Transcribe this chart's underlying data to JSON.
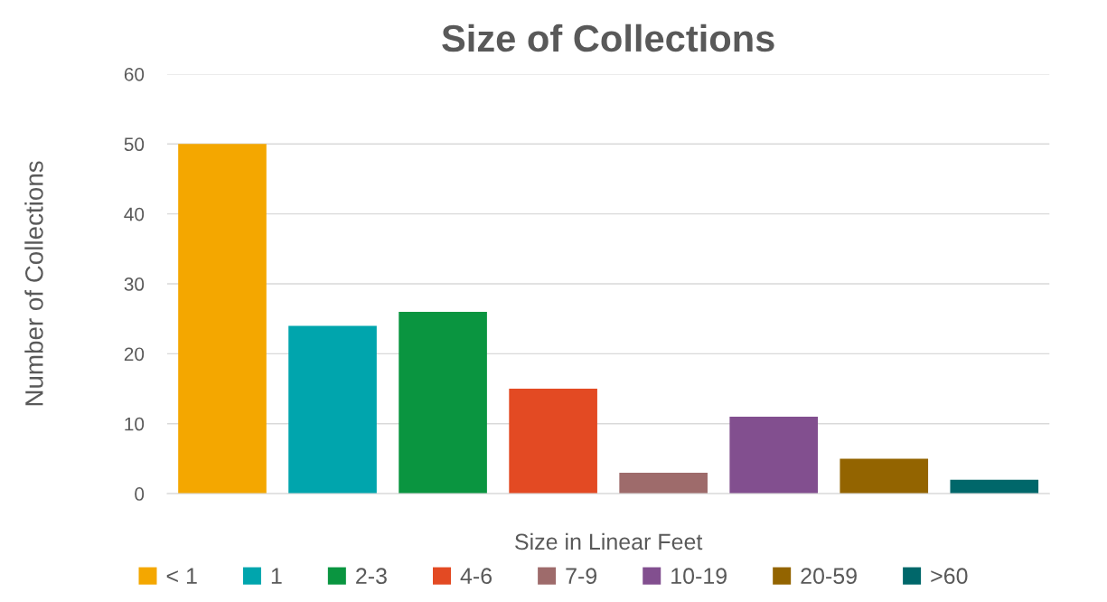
{
  "chart_data": {
    "type": "bar",
    "title": "Size of Collections",
    "xlabel": "Size in Linear Feet",
    "ylabel": "Number of Collections",
    "categories": [
      null,
      null,
      null,
      null,
      null,
      null,
      null,
      null
    ],
    "series": [
      {
        "name": "< 1",
        "color": "#f4a700",
        "values": [
          50,
          null,
          null,
          null,
          null,
          null,
          null,
          null
        ]
      },
      {
        "name": "1",
        "color": "#00a5ad",
        "values": [
          null,
          24,
          null,
          null,
          null,
          null,
          null,
          null
        ]
      },
      {
        "name": "2-3",
        "color": "#0a9540",
        "values": [
          null,
          null,
          26,
          null,
          null,
          null,
          null,
          null
        ]
      },
      {
        "name": "4-6",
        "color": "#e34a23",
        "values": [
          null,
          null,
          null,
          15,
          null,
          null,
          null,
          null
        ]
      },
      {
        "name": "7-9",
        "color": "#9e6b6b",
        "values": [
          null,
          null,
          null,
          null,
          3,
          null,
          null,
          null
        ]
      },
      {
        "name": "10-19",
        "color": "#824f8f",
        "values": [
          null,
          null,
          null,
          null,
          null,
          11,
          null,
          null
        ]
      },
      {
        "name": "20-59",
        "color": "#936400",
        "values": [
          null,
          null,
          null,
          null,
          null,
          null,
          5,
          null
        ]
      },
      {
        "name": ">60",
        "color": "#00676a",
        "values": [
          null,
          null,
          null,
          null,
          null,
          null,
          null,
          2
        ]
      }
    ],
    "ylim": [
      0,
      60
    ],
    "yticks": [
      0,
      10,
      20,
      30,
      40,
      50,
      60
    ],
    "grid": "y",
    "legend": "bottom"
  }
}
